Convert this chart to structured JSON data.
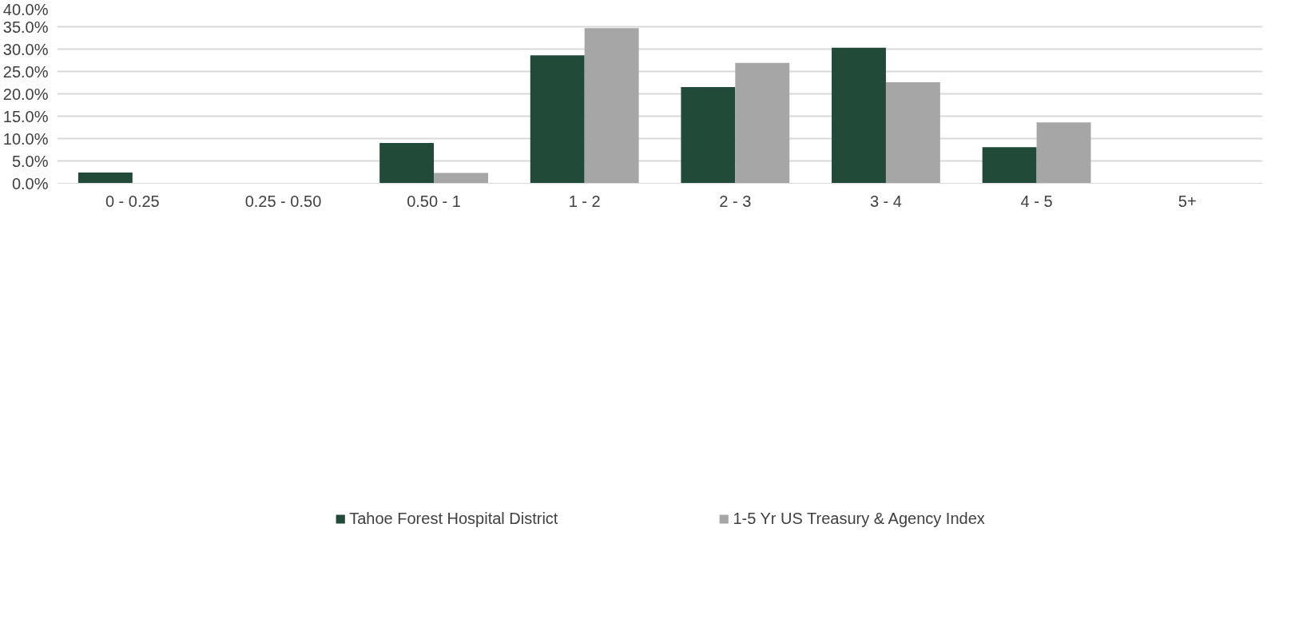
{
  "chart_data": {
    "type": "bar",
    "categories": [
      "0 - 0.25",
      "0.25 - 0.50",
      "0.50 - 1",
      "1 - 2",
      "2 - 3",
      "3 - 4",
      "4 - 5",
      "5+"
    ],
    "series": [
      {
        "name": "Tahoe Forest Hospital District",
        "color": "#214b38",
        "values": [
          2.4,
          0,
          9.0,
          28.6,
          21.5,
          30.3,
          8.1,
          0
        ]
      },
      {
        "name": "1-5 Yr US Treasury & Agency Index",
        "color": "#a6a6a6",
        "values": [
          0,
          0,
          2.3,
          34.7,
          26.9,
          22.6,
          13.6,
          0
        ]
      }
    ],
    "ylim": [
      0,
      40
    ],
    "yticks": [
      {
        "value": 0,
        "label": "0.0%"
      },
      {
        "value": 5,
        "label": "5.0%"
      },
      {
        "value": 10,
        "label": "10.0%"
      },
      {
        "value": 15,
        "label": "15.0%"
      },
      {
        "value": 20,
        "label": "20.0%"
      },
      {
        "value": 25,
        "label": "25.0%"
      },
      {
        "value": 30,
        "label": "30.0%"
      },
      {
        "value": 35,
        "label": "35.0%"
      },
      {
        "value": 40,
        "label": "40.0%"
      }
    ],
    "grid": "y",
    "legend": "bottom"
  }
}
